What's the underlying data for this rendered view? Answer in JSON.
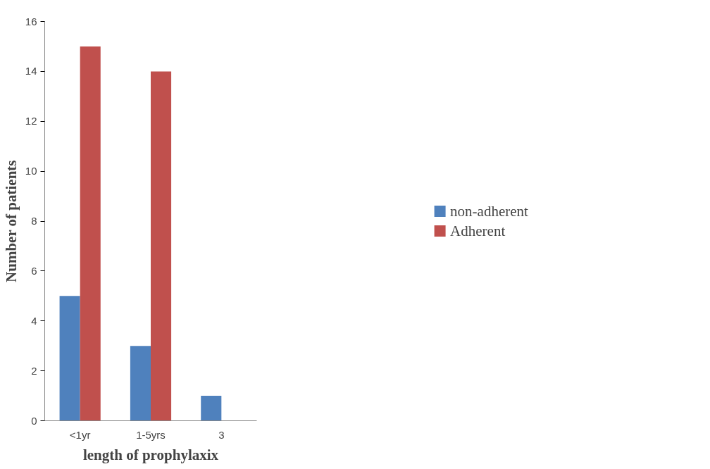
{
  "chart_data": {
    "type": "bar",
    "xlabel": "length of prophylaxix",
    "ylabel": "Number of patients",
    "categories": [
      "<1yr",
      "1-5yrs",
      "3"
    ],
    "series": [
      {
        "name": "non-adherent",
        "color": "#4f81bd",
        "values": [
          5,
          3,
          1
        ]
      },
      {
        "name": "Adherent",
        "color": "#c0504d",
        "values": [
          15,
          14,
          0
        ]
      }
    ],
    "ylim": [
      0,
      16
    ],
    "yticks": [
      0,
      2,
      4,
      6,
      8,
      10,
      12,
      14,
      16
    ],
    "grid": false,
    "legend": "right"
  }
}
